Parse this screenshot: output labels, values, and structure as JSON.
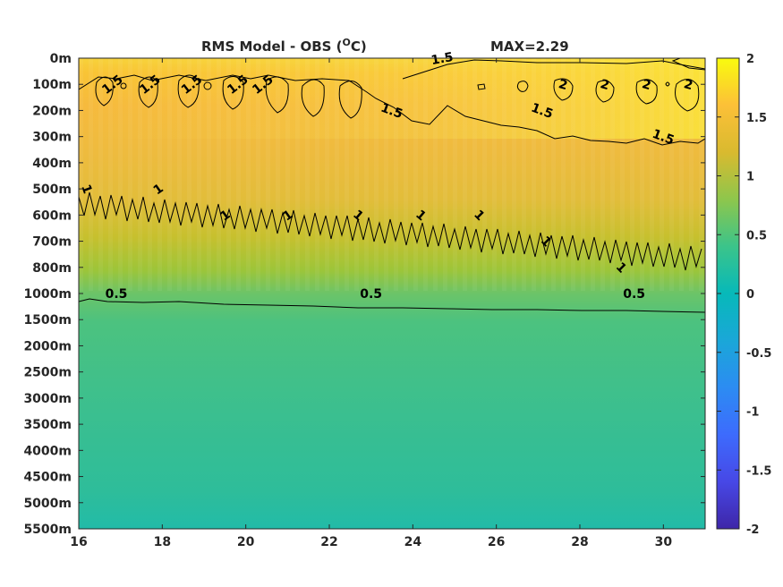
{
  "chart_data": {
    "type": "heatmap",
    "title": "RMS Model - OBS (",
    "title_unit_sup": "O",
    "title_unit_end": "C)",
    "max_label": "MAX=2.29",
    "x": {
      "range": [
        16,
        31
      ],
      "ticks": [
        16,
        18,
        20,
        22,
        24,
        26,
        28,
        30
      ]
    },
    "y": {
      "scale": "categorical-depth",
      "levels": [
        "0m",
        "100m",
        "200m",
        "300m",
        "400m",
        "500m",
        "600m",
        "700m",
        "800m",
        "1000m",
        "1500m",
        "2000m",
        "2500m",
        "3000m",
        "3500m",
        "4000m",
        "4500m",
        "5000m",
        "5500m"
      ]
    },
    "colorbar": {
      "range": [
        -2,
        2
      ],
      "ticks": [
        "2",
        "1.5",
        "1",
        "0.5",
        "0",
        "-0.5",
        "-1",
        "-1.5",
        "-2"
      ],
      "colormap": "parula"
    },
    "contour_levels": [
      0.5,
      1,
      1.5,
      2
    ],
    "contour_labels": [
      {
        "text": "1.5",
        "x": 16.8,
        "y": "100m"
      },
      {
        "text": "1.5",
        "x": 17.7,
        "y": "100m"
      },
      {
        "text": "1.5",
        "x": 18.7,
        "y": "100m"
      },
      {
        "text": "1.5",
        "x": 19.8,
        "y": "100m"
      },
      {
        "text": "1.5",
        "x": 20.4,
        "y": "100m"
      },
      {
        "text": "1.5",
        "x": 23.5,
        "y": "200m"
      },
      {
        "text": "1.5",
        "x": 24.7,
        "y": "0m"
      },
      {
        "text": "1.5",
        "x": 27.1,
        "y": "200m"
      },
      {
        "text": "1.5",
        "x": 30.0,
        "y": "300m"
      },
      {
        "text": "2",
        "x": 27.6,
        "y": "100m"
      },
      {
        "text": "2",
        "x": 28.6,
        "y": "100m"
      },
      {
        "text": "2",
        "x": 29.6,
        "y": "100m"
      },
      {
        "text": "2",
        "x": 30.6,
        "y": "100m"
      },
      {
        "text": "1",
        "x": 16.2,
        "y": "500m"
      },
      {
        "text": "1",
        "x": 17.9,
        "y": "500m"
      },
      {
        "text": "1",
        "x": 19.5,
        "y": "600m"
      },
      {
        "text": "1",
        "x": 21.0,
        "y": "600m"
      },
      {
        "text": "1",
        "x": 22.7,
        "y": "600m"
      },
      {
        "text": "1",
        "x": 24.2,
        "y": "600m"
      },
      {
        "text": "1",
        "x": 25.6,
        "y": "600m"
      },
      {
        "text": "1",
        "x": 27.2,
        "y": "700m"
      },
      {
        "text": "1",
        "x": 29.0,
        "y": "800m"
      },
      {
        "text": "0.5",
        "x": 16.9,
        "y": "1000m"
      },
      {
        "text": "0.5",
        "x": 23.0,
        "y": "1000m"
      },
      {
        "text": "0.5",
        "x": 29.3,
        "y": "1000m"
      }
    ]
  }
}
